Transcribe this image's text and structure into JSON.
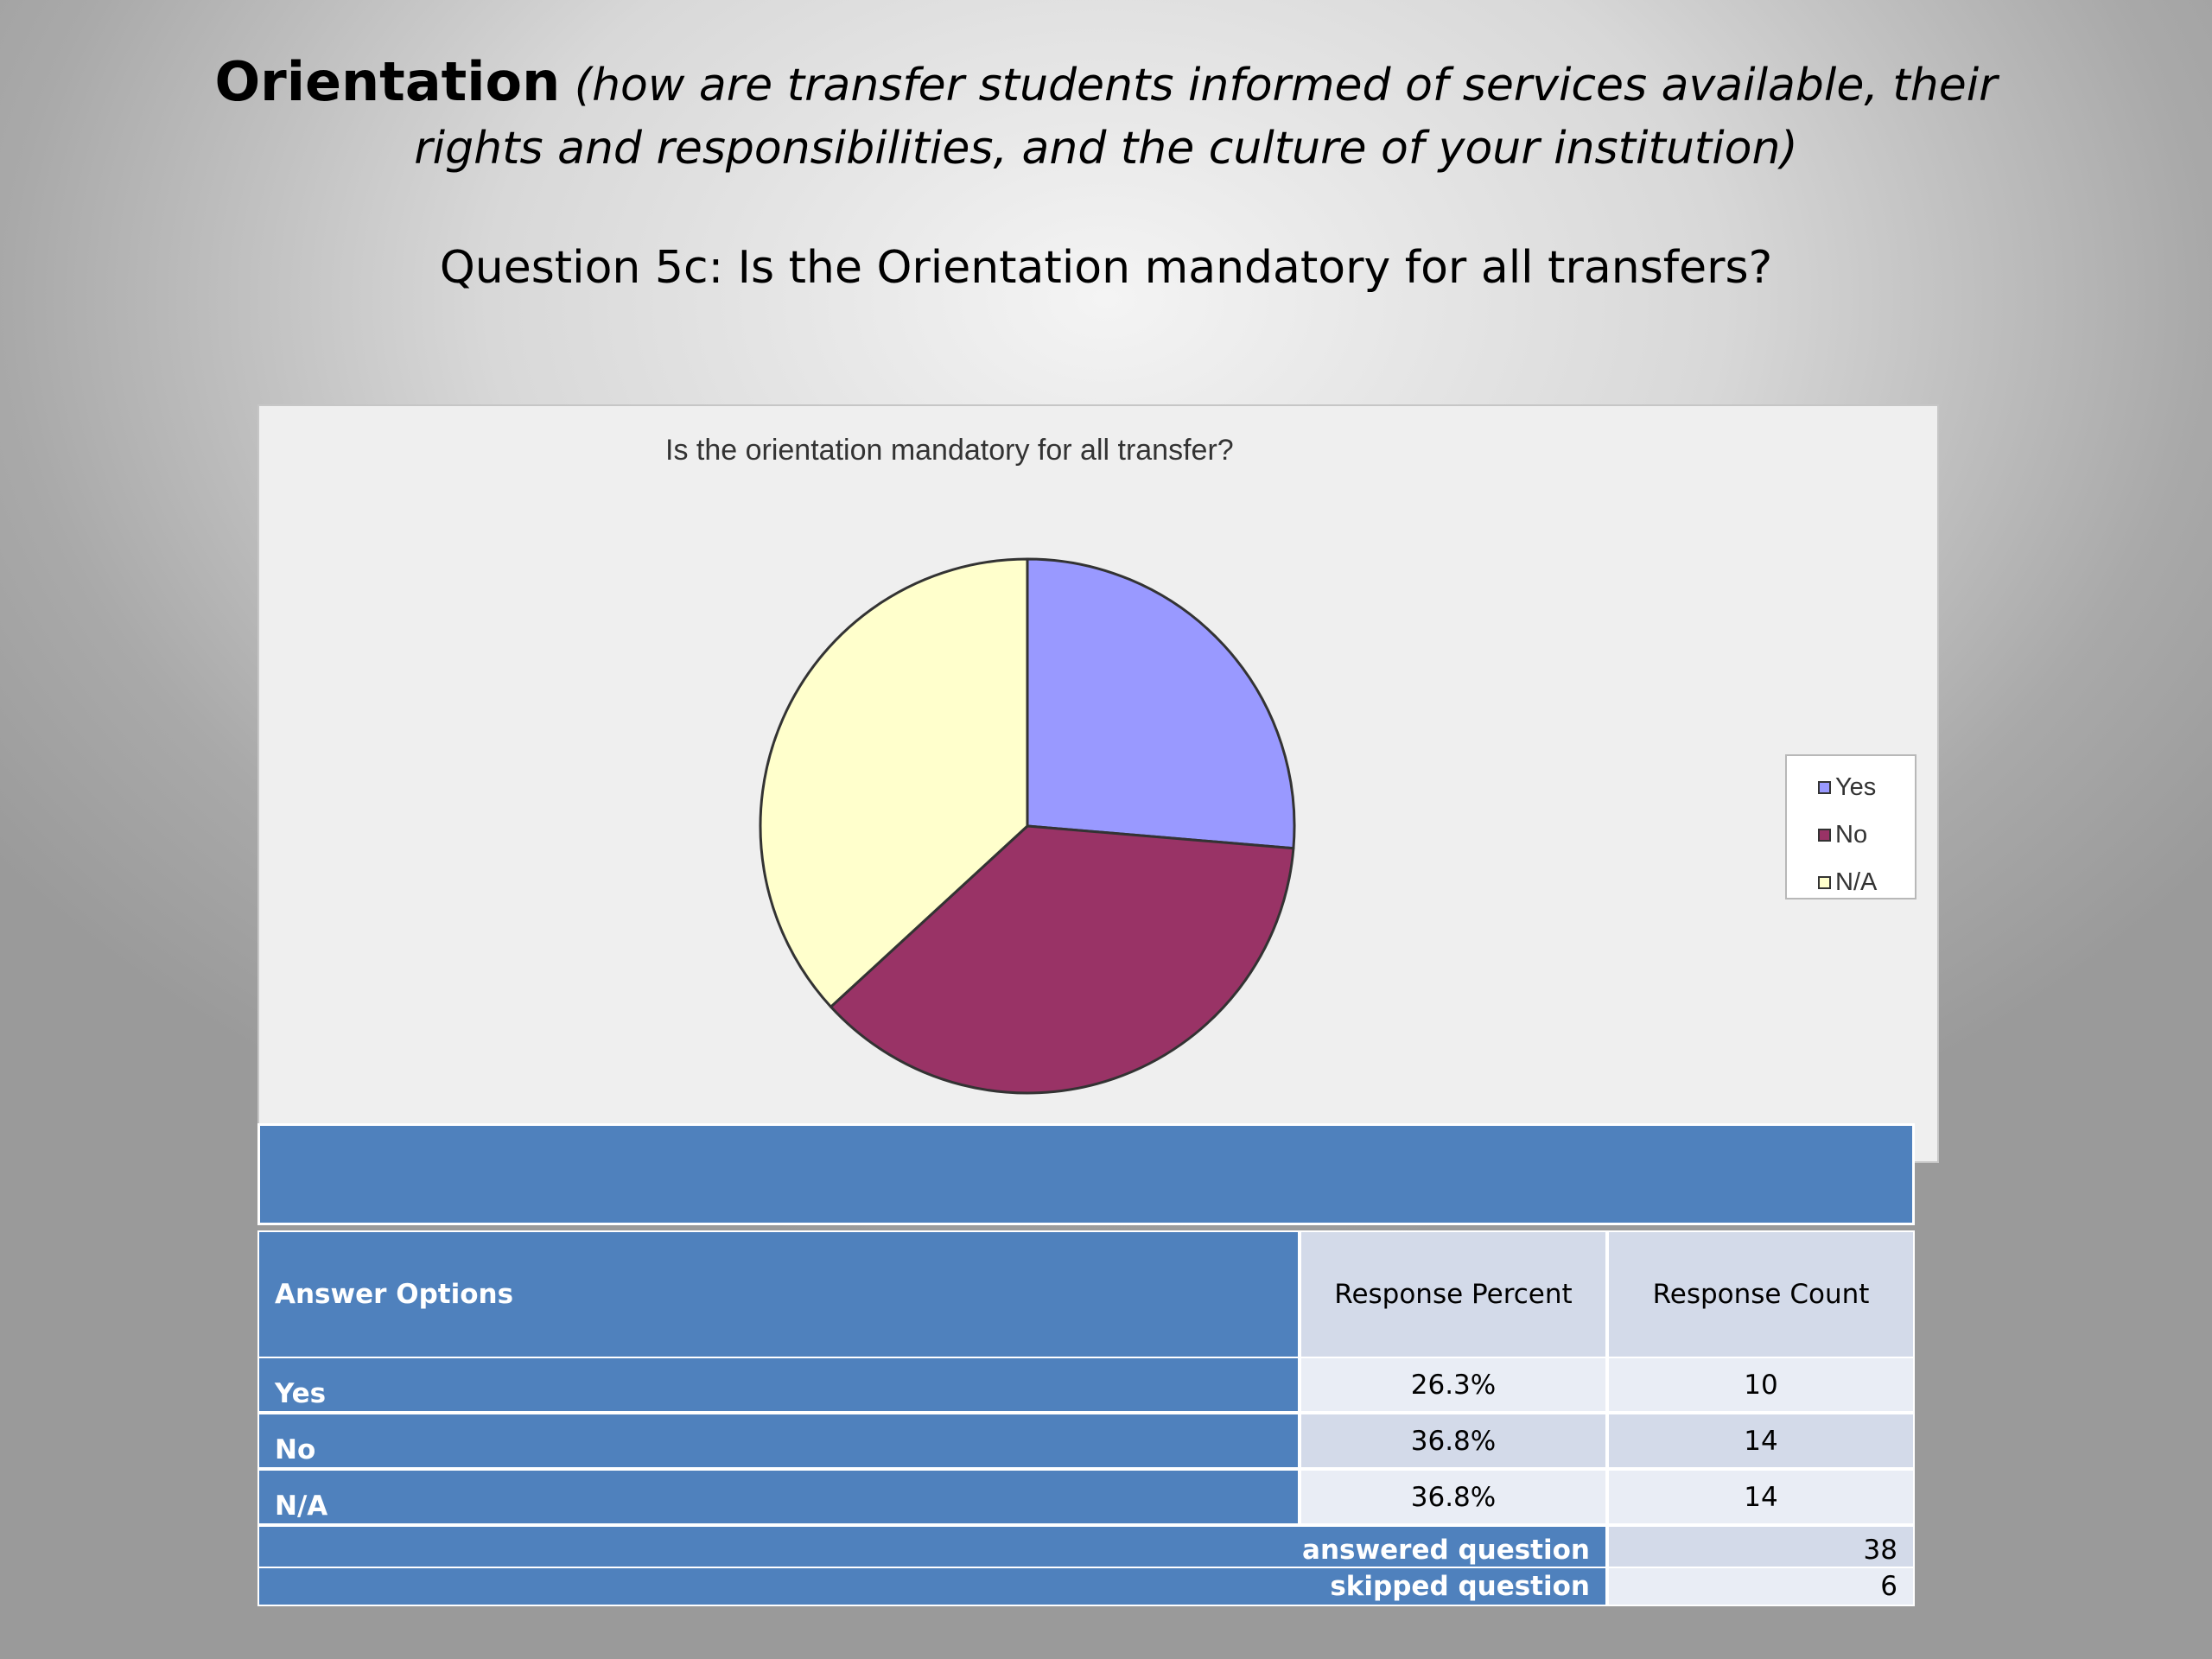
{
  "slide": {
    "title_main": "Orientation",
    "title_sub": " (how are transfer students informed of services available, their rights and responsibilities, and the culture of your institution)",
    "question": "Question 5c: Is the Orientation mandatory for all transfers?"
  },
  "chart_data": {
    "type": "pie",
    "title": "Is the orientation mandatory for all transfer?",
    "categories": [
      "Yes",
      "No",
      "N/A"
    ],
    "values": [
      26.3,
      36.8,
      36.8
    ],
    "colors": [
      "#9999ff",
      "#993366",
      "#ffffcc"
    ],
    "legend_position": "right"
  },
  "table": {
    "header": {
      "answer_options": "Answer Options",
      "response_percent": "Response Percent",
      "response_count": "Response Count"
    },
    "rows": [
      {
        "option": "Yes",
        "percent": "26.3%",
        "count": "10"
      },
      {
        "option": "No",
        "percent": "36.8%",
        "count": "14"
      },
      {
        "option": "N/A",
        "percent": "36.8%",
        "count": "14"
      }
    ],
    "answered_label": "answered question",
    "answered_value": "38",
    "skipped_label": "skipped question",
    "skipped_value": "6"
  }
}
